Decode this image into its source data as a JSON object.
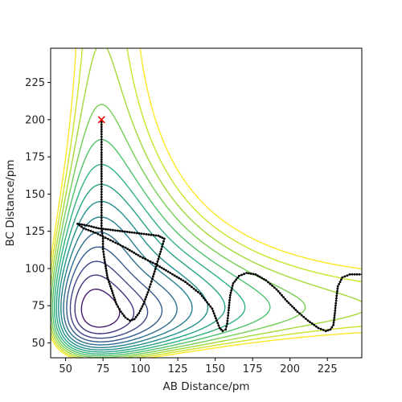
{
  "chart_data": {
    "type": "contour",
    "title": "",
    "xlabel": "AB Distance/pm",
    "ylabel": "BC Distance/pm",
    "xlim": [
      40,
      248
    ],
    "ylim": [
      40,
      248
    ],
    "x_ticks": [
      50,
      75,
      100,
      125,
      150,
      175,
      200,
      225
    ],
    "y_ticks": [
      50,
      75,
      100,
      125,
      150,
      175,
      200,
      225
    ],
    "x_tick_labels": [
      "50",
      "75",
      "100",
      "125",
      "150",
      "175",
      "200",
      "225"
    ],
    "y_tick_labels": [
      "50",
      "75",
      "100",
      "125",
      "150",
      "175",
      "200",
      "225"
    ],
    "colormap": [
      "#440154",
      "#472d7b",
      "#3b528b",
      "#2c728e",
      "#21918c",
      "#28ae80",
      "#5ec962",
      "#addc30",
      "#fde725"
    ],
    "contour_levels": 15,
    "start_marker": {
      "symbol": "x",
      "color": "#ff0000",
      "x": 74,
      "y": 200
    },
    "trajectory_color": "#000000",
    "trajectory": [
      [
        74,
        200
      ],
      [
        74,
        192
      ],
      [
        74,
        185
      ],
      [
        74,
        178
      ],
      [
        74,
        170
      ],
      [
        74,
        162
      ],
      [
        74,
        155
      ],
      [
        74,
        148
      ],
      [
        74,
        141
      ],
      [
        74,
        134
      ],
      [
        74,
        127
      ],
      [
        75,
        120
      ],
      [
        75,
        113
      ],
      [
        76,
        106
      ],
      [
        77,
        100
      ],
      [
        78,
        94
      ],
      [
        80,
        88
      ],
      [
        82,
        82
      ],
      [
        84,
        76
      ],
      [
        87,
        71
      ],
      [
        90,
        67
      ],
      [
        93,
        65
      ],
      [
        96,
        66
      ],
      [
        99,
        70
      ],
      [
        102,
        76
      ],
      [
        105,
        84
      ],
      [
        108,
        93
      ],
      [
        111,
        103
      ],
      [
        114,
        113
      ],
      [
        116,
        120
      ],
      [
        112,
        122
      ],
      [
        104,
        123
      ],
      [
        96,
        124
      ],
      [
        88,
        125
      ],
      [
        80,
        126
      ],
      [
        72,
        127
      ],
      [
        64,
        129
      ],
      [
        58,
        130
      ],
      [
        62,
        127
      ],
      [
        70,
        124
      ],
      [
        80,
        119
      ],
      [
        90,
        114
      ],
      [
        100,
        108
      ],
      [
        110,
        103
      ],
      [
        120,
        97
      ],
      [
        130,
        91
      ],
      [
        140,
        83
      ],
      [
        148,
        73
      ],
      [
        151,
        65
      ],
      [
        153,
        60
      ],
      [
        155,
        58
      ],
      [
        157,
        59
      ],
      [
        158,
        63
      ],
      [
        159,
        72
      ],
      [
        160,
        82
      ],
      [
        162,
        90
      ],
      [
        166,
        95
      ],
      [
        171,
        97
      ],
      [
        177,
        96
      ],
      [
        184,
        92
      ],
      [
        191,
        86
      ],
      [
        198,
        78
      ],
      [
        205,
        71
      ],
      [
        212,
        65
      ],
      [
        219,
        60
      ],
      [
        224,
        58
      ],
      [
        227,
        59
      ],
      [
        229,
        62
      ],
      [
        230,
        70
      ],
      [
        231,
        80
      ],
      [
        232,
        88
      ],
      [
        235,
        94
      ],
      [
        240,
        96
      ],
      [
        248,
        96
      ]
    ]
  }
}
